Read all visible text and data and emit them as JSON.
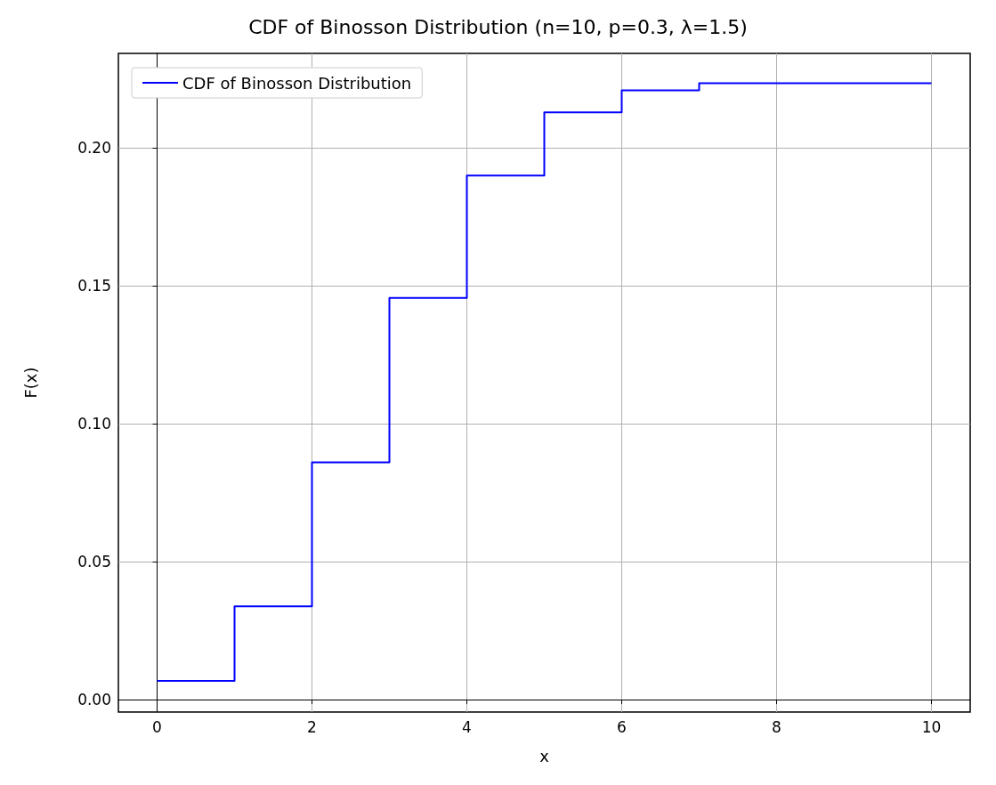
{
  "chart_data": {
    "type": "step",
    "title": "CDF of Binosson Distribution (n=10, p=0.3, λ=1.5)",
    "xlabel": "x",
    "ylabel": "F(x)",
    "x": [
      0,
      1,
      2,
      3,
      4,
      5,
      6,
      7,
      8,
      9,
      10
    ],
    "series": [
      {
        "name": "CDF of Binosson Distribution",
        "color": "#0000ff",
        "values": [
          0.0068,
          0.0338,
          0.086,
          0.1456,
          0.19,
          0.2129,
          0.2209,
          0.2235,
          0.2235,
          0.2235,
          0.2235
        ]
      }
    ],
    "xlim": [
      -0.5,
      10.5
    ],
    "xticks": [
      0,
      2,
      4,
      6,
      8,
      10
    ],
    "ylim": [
      -0.0045,
      0.2343
    ],
    "yticks": [
      {
        "value": 0,
        "label": "0.00"
      },
      {
        "value": 0.05,
        "label": "0.05"
      },
      {
        "value": 0.1,
        "label": "0.10"
      },
      {
        "value": 0.15,
        "label": "0.15"
      },
      {
        "value": 0.2,
        "label": "0.20"
      }
    ],
    "grid": true,
    "legend": "top left",
    "marker": "none",
    "line_style": "solid"
  }
}
